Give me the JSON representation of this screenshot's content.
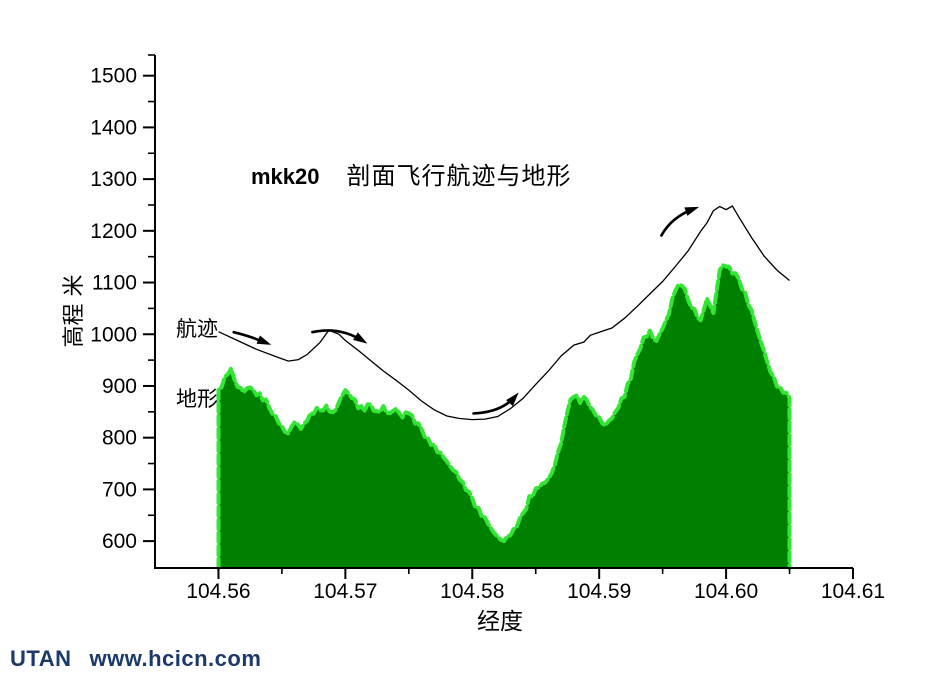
{
  "page": {
    "background": "#ffffff"
  },
  "header": {
    "title_prefix": "mkk20",
    "title_text": "剖面飞行航迹与地形"
  },
  "annotations": {
    "trajectory_label": "航迹",
    "terrain_label": "地形"
  },
  "footer": {
    "brand": "UTAN",
    "site": "www.hcicn.com",
    "color": "#1b3a6b"
  },
  "chart_data": {
    "type": "area",
    "title": "mkk20 剖面飞行航迹与地形",
    "xlabel": "经度",
    "ylabel": "高程 米",
    "xlim": [
      104.555,
      104.61
    ],
    "ylim": [
      548,
      1540
    ],
    "grid": false,
    "legend_position": "inline-annotations",
    "axis_color": "#000000",
    "x_ticks": {
      "major": [
        {
          "v": 104.56,
          "label": "104.56"
        },
        {
          "v": 104.57,
          "label": "104.57"
        },
        {
          "v": 104.58,
          "label": "104.58"
        },
        {
          "v": 104.59,
          "label": "104.59"
        },
        {
          "v": 104.6,
          "label": "104.60"
        },
        {
          "v": 104.61,
          "label": "104.61"
        }
      ],
      "minor": [
        104.565,
        104.575,
        104.585,
        104.595,
        104.605
      ]
    },
    "y_ticks": {
      "major": [
        {
          "v": 600,
          "label": "600"
        },
        {
          "v": 700,
          "label": "700"
        },
        {
          "v": 800,
          "label": "800"
        },
        {
          "v": 900,
          "label": "900"
        },
        {
          "v": 1000,
          "label": "1000"
        },
        {
          "v": 1100,
          "label": "1100"
        },
        {
          "v": 1200,
          "label": "1200"
        },
        {
          "v": 1300,
          "label": "1300"
        },
        {
          "v": 1400,
          "label": "1400"
        },
        {
          "v": 1500,
          "label": "1500"
        }
      ],
      "minor": [
        650,
        750,
        850,
        950,
        1050,
        1150,
        1250,
        1350,
        1450,
        1540
      ]
    },
    "series": [
      {
        "name": "地形",
        "type": "area",
        "fill": "#008000",
        "edge": "#33e633",
        "baseline": 548,
        "points": [
          [
            104.56,
            895
          ],
          [
            104.5605,
            918
          ],
          [
            104.561,
            934
          ],
          [
            104.5615,
            898
          ],
          [
            104.562,
            888
          ],
          [
            104.5625,
            897
          ],
          [
            104.563,
            882
          ],
          [
            104.5635,
            872
          ],
          [
            104.564,
            858
          ],
          [
            104.5645,
            842
          ],
          [
            104.565,
            822
          ],
          [
            104.5655,
            808
          ],
          [
            104.566,
            830
          ],
          [
            104.5665,
            817
          ],
          [
            104.567,
            833
          ],
          [
            104.5675,
            846
          ],
          [
            104.568,
            853
          ],
          [
            104.5685,
            862
          ],
          [
            104.569,
            849
          ],
          [
            104.5695,
            869
          ],
          [
            104.57,
            892
          ],
          [
            104.5705,
            877
          ],
          [
            104.571,
            857
          ],
          [
            104.5715,
            851
          ],
          [
            104.572,
            864
          ],
          [
            104.5725,
            851
          ],
          [
            104.573,
            861
          ],
          [
            104.5735,
            847
          ],
          [
            104.574,
            856
          ],
          [
            104.5745,
            839
          ],
          [
            104.575,
            847
          ],
          [
            104.5755,
            827
          ],
          [
            104.576,
            817
          ],
          [
            104.5765,
            799
          ],
          [
            104.577,
            787
          ],
          [
            104.5775,
            771
          ],
          [
            104.578,
            754
          ],
          [
            104.5785,
            737
          ],
          [
            104.579,
            719
          ],
          [
            104.5795,
            699
          ],
          [
            104.58,
            682
          ],
          [
            104.5805,
            664
          ],
          [
            104.581,
            646
          ],
          [
            104.5815,
            624
          ],
          [
            104.582,
            609
          ],
          [
            104.5825,
            600
          ],
          [
            104.583,
            611
          ],
          [
            104.5835,
            627
          ],
          [
            104.584,
            654
          ],
          [
            104.5845,
            687
          ],
          [
            104.585,
            702
          ],
          [
            104.5855,
            711
          ],
          [
            104.586,
            721
          ],
          [
            104.5865,
            747
          ],
          [
            104.587,
            789
          ],
          [
            104.5875,
            851
          ],
          [
            104.588,
            879
          ],
          [
            104.5885,
            867
          ],
          [
            104.589,
            874
          ],
          [
            104.5895,
            854
          ],
          [
            104.59,
            839
          ],
          [
            104.5905,
            824
          ],
          [
            104.591,
            837
          ],
          [
            104.5915,
            857
          ],
          [
            104.592,
            879
          ],
          [
            104.5925,
            914
          ],
          [
            104.593,
            961
          ],
          [
            104.5935,
            994
          ],
          [
            104.594,
            1007
          ],
          [
            104.5945,
            987
          ],
          [
            104.595,
            1011
          ],
          [
            104.5955,
            1039
          ],
          [
            104.596,
            1084
          ],
          [
            104.5965,
            1094
          ],
          [
            104.597,
            1067
          ],
          [
            104.5975,
            1049
          ],
          [
            104.598,
            1027
          ],
          [
            104.5985,
            1069
          ],
          [
            104.599,
            1041
          ],
          [
            104.5995,
            1124
          ],
          [
            104.6,
            1131
          ],
          [
            104.6005,
            1117
          ],
          [
            104.601,
            1107
          ],
          [
            104.6015,
            1081
          ],
          [
            104.602,
            1047
          ],
          [
            104.6025,
            1004
          ],
          [
            104.603,
            967
          ],
          [
            104.6035,
            927
          ],
          [
            104.604,
            899
          ],
          [
            104.6045,
            887
          ],
          [
            104.605,
            877
          ]
        ]
      },
      {
        "name": "航迹",
        "type": "line",
        "color": "#000000",
        "points": [
          [
            104.56,
            1005
          ],
          [
            104.5615,
            988
          ],
          [
            104.563,
            971
          ],
          [
            104.5645,
            957
          ],
          [
            104.5655,
            948
          ],
          [
            104.5663,
            951
          ],
          [
            104.567,
            961
          ],
          [
            104.568,
            984
          ],
          [
            104.5687,
            1008
          ],
          [
            104.5695,
            1000
          ],
          [
            104.57,
            988
          ],
          [
            104.571,
            969
          ],
          [
            104.572,
            949
          ],
          [
            104.573,
            929
          ],
          [
            104.574,
            911
          ],
          [
            104.575,
            892
          ],
          [
            104.576,
            871
          ],
          [
            104.577,
            854
          ],
          [
            104.578,
            842
          ],
          [
            104.579,
            837
          ],
          [
            104.58,
            835
          ],
          [
            104.581,
            836
          ],
          [
            104.582,
            841
          ],
          [
            104.583,
            856
          ],
          [
            104.584,
            876
          ],
          [
            104.585,
            903
          ],
          [
            104.586,
            929
          ],
          [
            104.587,
            958
          ],
          [
            104.588,
            979
          ],
          [
            104.5888,
            985
          ],
          [
            104.5893,
            998
          ],
          [
            104.59,
            1004
          ],
          [
            104.591,
            1012
          ],
          [
            104.592,
            1031
          ],
          [
            104.593,
            1054
          ],
          [
            104.594,
            1078
          ],
          [
            104.595,
            1102
          ],
          [
            104.596,
            1131
          ],
          [
            104.597,
            1161
          ],
          [
            104.598,
            1199
          ],
          [
            104.5985,
            1216
          ],
          [
            104.599,
            1239
          ],
          [
            104.5995,
            1247
          ],
          [
            104.6,
            1241
          ],
          [
            104.6005,
            1248
          ],
          [
            104.601,
            1227
          ],
          [
            104.602,
            1187
          ],
          [
            104.603,
            1151
          ],
          [
            104.604,
            1124
          ],
          [
            104.605,
            1104
          ]
        ]
      }
    ],
    "arrows": [
      {
        "tail": [
          104.5612,
          1004
        ],
        "ctrl": [
          104.5624,
          997
        ],
        "head": [
          104.5638,
          983
        ]
      },
      {
        "tail": [
          104.5674,
          1004
        ],
        "ctrl": [
          104.5695,
          1016
        ],
        "head": [
          104.5714,
          987
        ]
      },
      {
        "tail": [
          104.5801,
          847
        ],
        "ctrl": [
          104.5823,
          849
        ],
        "head": [
          104.5834,
          880
        ]
      },
      {
        "tail": [
          104.5949,
          1191
        ],
        "ctrl": [
          104.5957,
          1227
        ],
        "head": [
          104.5975,
          1243
        ]
      }
    ]
  }
}
